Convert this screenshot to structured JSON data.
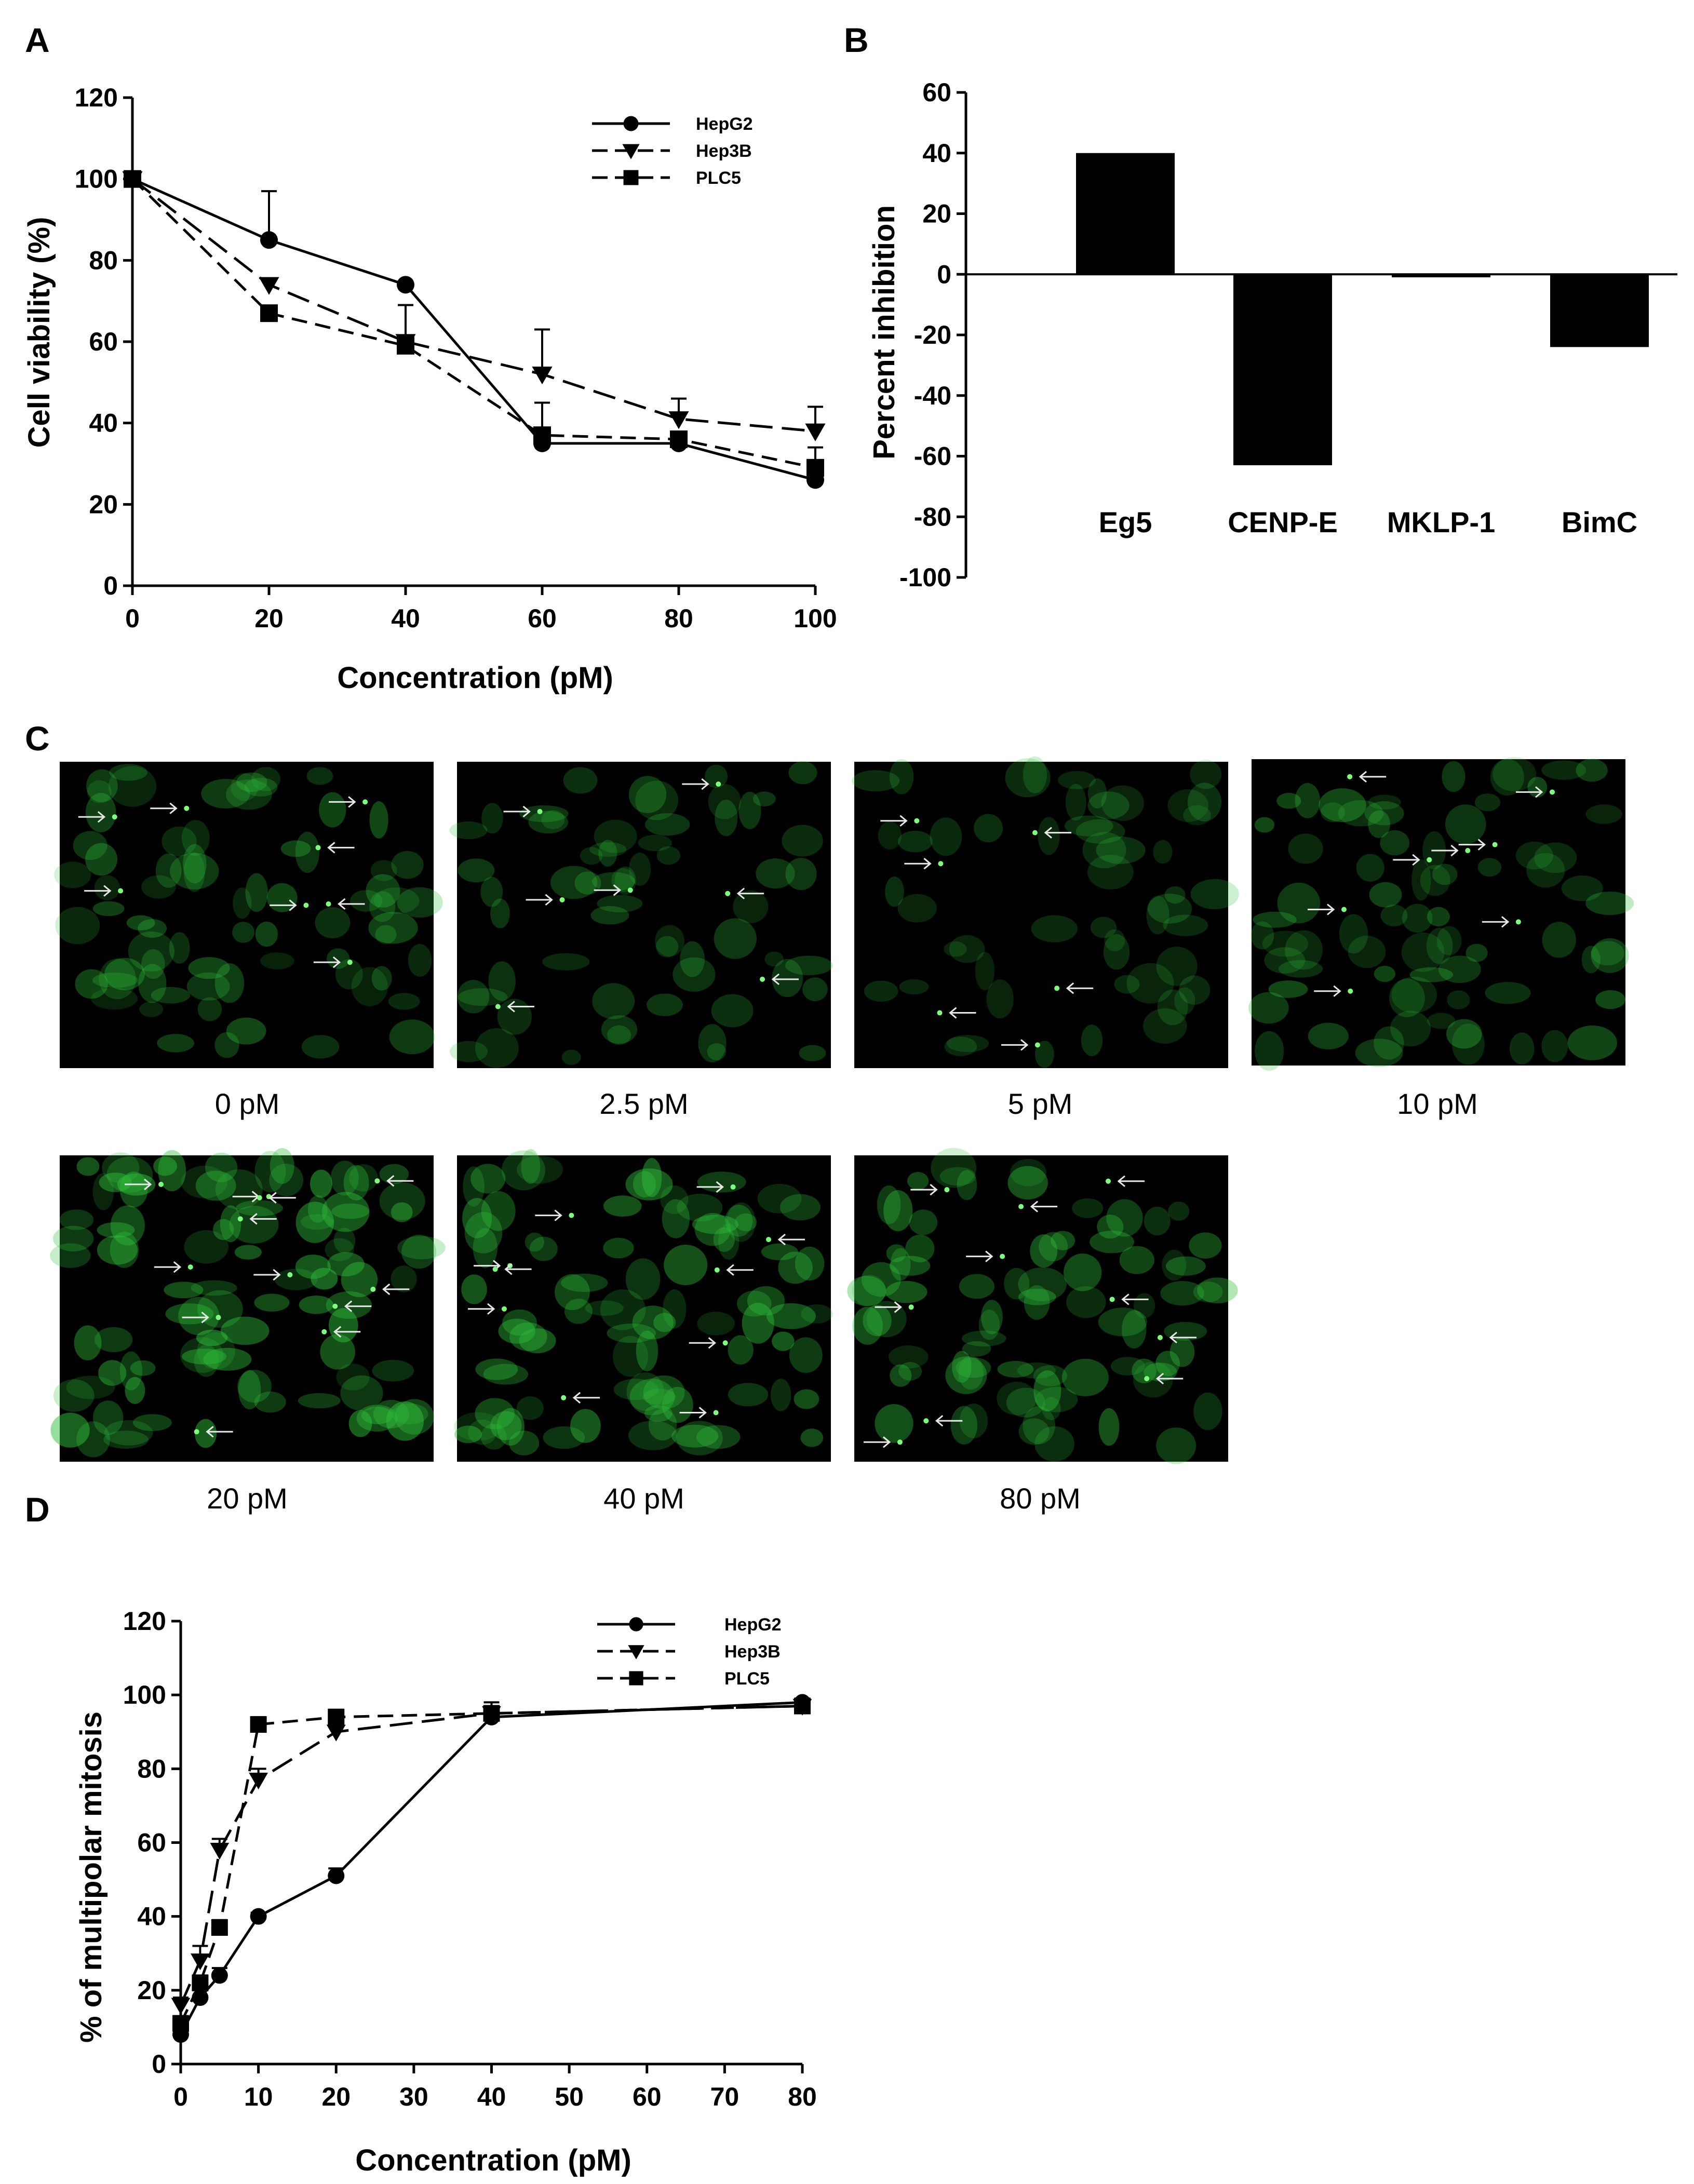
{
  "panels": [
    {
      "letter": "A"
    },
    {
      "letter": "B"
    },
    {
      "letter": "C"
    },
    {
      "letter": "D"
    }
  ],
  "chart_data": [
    {
      "panel": "A",
      "type": "line",
      "xlabel": "Concentration (pM)",
      "ylabel": "Cell viability (%)",
      "xlim": [
        0,
        100
      ],
      "ylim": [
        0,
        120
      ],
      "xticks": [
        0,
        20,
        40,
        60,
        80,
        100
      ],
      "yticks": [
        0,
        20,
        40,
        60,
        80,
        100,
        120
      ],
      "x": [
        0,
        20,
        40,
        60,
        80,
        100
      ],
      "legend": "top-right",
      "series": [
        {
          "name": "HepG2",
          "marker": "circle",
          "dash": "solid",
          "values": [
            100,
            85,
            74,
            35,
            35,
            26
          ],
          "errors": [
            0,
            12,
            0,
            10,
            0,
            0
          ]
        },
        {
          "name": "Hep3B",
          "marker": "triangle-down",
          "dash": "dashed",
          "values": [
            100,
            74,
            60,
            52,
            41,
            38
          ],
          "errors": [
            0,
            0,
            0,
            11,
            5,
            6
          ]
        },
        {
          "name": "PLC5",
          "marker": "square",
          "dash": "dashed",
          "values": [
            100,
            67,
            59,
            37,
            36,
            29
          ],
          "errors": [
            0,
            0,
            10,
            0,
            0,
            5
          ]
        }
      ]
    },
    {
      "panel": "B",
      "type": "bar",
      "ylabel": "Percent inhibition",
      "ylim": [
        -100,
        60
      ],
      "yticks": [
        -100,
        -80,
        -60,
        -40,
        -20,
        0,
        20,
        40,
        60
      ],
      "categories": [
        "Eg5",
        "CENP-E",
        "MKLP-1",
        "BimC"
      ],
      "values": [
        40,
        -63,
        -1,
        -24
      ],
      "bar_color": "#000000"
    },
    {
      "panel": "D",
      "type": "line",
      "xlabel": "Concentration (pM)",
      "ylabel": "% of multipolar mitosis",
      "xlim": [
        0,
        80
      ],
      "ylim": [
        0,
        120
      ],
      "xticks": [
        0,
        10,
        20,
        30,
        40,
        50,
        60,
        70,
        80
      ],
      "yticks": [
        0,
        20,
        40,
        60,
        80,
        100,
        120
      ],
      "x": [
        0,
        2.5,
        5,
        10,
        20,
        40,
        80
      ],
      "legend": "top-right",
      "series": [
        {
          "name": "HepG2",
          "marker": "circle",
          "dash": "solid",
          "values": [
            8,
            18,
            24,
            40,
            51,
            94,
            98
          ],
          "errors": [
            2,
            2,
            2,
            1,
            2,
            2,
            1
          ]
        },
        {
          "name": "Hep3B",
          "marker": "triangle-down",
          "dash": "dashed",
          "values": [
            16,
            28,
            58,
            77,
            90,
            95,
            97
          ],
          "errors": [
            2,
            4,
            3,
            3,
            2,
            2,
            1
          ]
        },
        {
          "name": "PLC5",
          "marker": "square",
          "dash": "dashed",
          "values": [
            11,
            22,
            37,
            92,
            94,
            95,
            97
          ],
          "errors": [
            2,
            2,
            2,
            2,
            2,
            3,
            1
          ]
        }
      ]
    }
  ],
  "micrographs": {
    "fluorescence_color": "#2fbf3a",
    "background_color": "#000000",
    "images": [
      {
        "caption": "0 pM"
      },
      {
        "caption": "2.5 pM"
      },
      {
        "caption": "5 pM"
      },
      {
        "caption": "10 pM"
      },
      {
        "caption": "20 pM"
      },
      {
        "caption": "40 pM"
      },
      {
        "caption": "80 pM"
      }
    ]
  }
}
